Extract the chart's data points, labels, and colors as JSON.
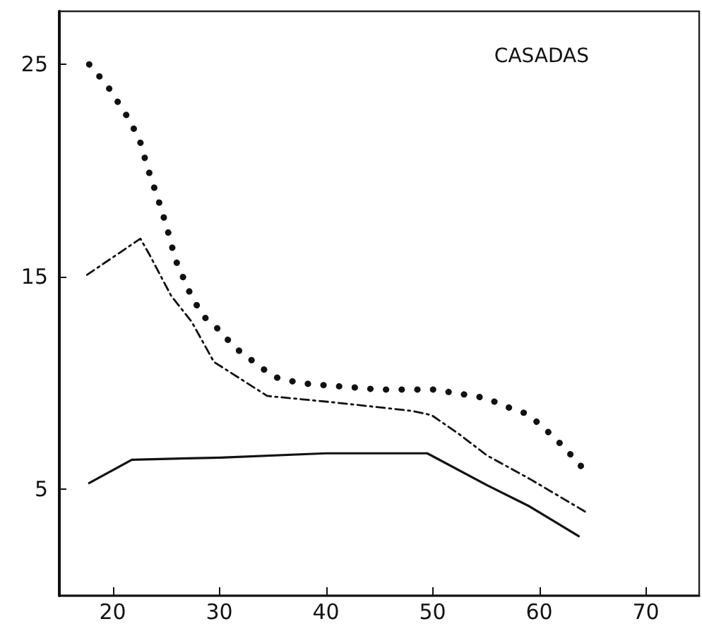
{
  "chart_data": {
    "type": "line",
    "title": "CASADAS",
    "xlim": [
      15,
      75
    ],
    "xticks": [
      20,
      30,
      40,
      50,
      60,
      70
    ],
    "ylim": [
      0,
      27.5
    ],
    "yticks": [
      5,
      15,
      25
    ],
    "grid": false,
    "marker": "none",
    "series": [
      {
        "color": "#111111",
        "line_style": "dotted",
        "x": [
          17.8,
          19.5,
          21.3,
          22.5,
          23.3,
          24.3,
          25.1,
          25.9,
          27.2,
          28.4,
          30,
          31.4,
          35.1,
          37.6,
          40,
          42.6,
          45,
          47.6,
          50.1,
          52.6,
          55,
          56.9,
          58.6,
          60,
          61.7,
          63.4,
          64.6
        ],
        "values": [
          25,
          24,
          22.6,
          21.5,
          20.1,
          18.6,
          17.3,
          15.8,
          14.3,
          13.2,
          12.5,
          11.7,
          10.3,
          10,
          9.9,
          9.8,
          9.7,
          9.7,
          9.7,
          9.5,
          9.3,
          8.9,
          8.6,
          8.1,
          7.3,
          6.4,
          5.7
        ]
      },
      {
        "color": "#111111",
        "line_style": "dashed",
        "x": [
          17.6,
          22.6,
          23.4,
          25.5,
          27.4,
          29.5,
          34.5,
          40.7,
          48,
          49.9,
          52.5,
          55.1,
          59.1,
          64.5
        ],
        "values": [
          15.1,
          16.8,
          16.1,
          14.1,
          12.9,
          11,
          9.4,
          9.1,
          8.7,
          8.5,
          7.6,
          6.6,
          5.5,
          3.9
        ]
      },
      {
        "color": "#111111",
        "line_style": "solid",
        "x": [
          17.8,
          21.8,
          30.1,
          40,
          49.5,
          55.1,
          59.1,
          63.7
        ],
        "values": [
          5.3,
          6.4,
          6.5,
          6.7,
          6.7,
          5.2,
          4.2,
          2.8
        ]
      }
    ]
  }
}
